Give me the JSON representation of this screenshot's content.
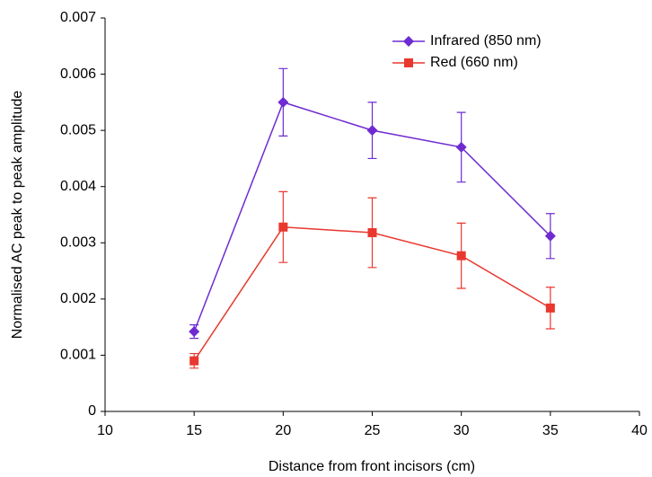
{
  "chart_data": {
    "type": "line",
    "x_label": "Distance from front incisors (cm)",
    "y_label": "Normalised AC peak to peak amplitude",
    "x": [
      15,
      20,
      25,
      30,
      35
    ],
    "series": [
      {
        "name": "Infrared (850 nm)",
        "color": "#6f2bd1",
        "marker": "diamond",
        "values": [
          0.00142,
          0.0055,
          0.005,
          0.0047,
          0.00312
        ],
        "errors": [
          0.00012,
          0.0006,
          0.0005,
          0.00062,
          0.0004
        ]
      },
      {
        "name": "Red (660 nm)",
        "color": "#e8382f",
        "marker": "square",
        "values": [
          0.0009,
          0.00328,
          0.00318,
          0.00277,
          0.00184
        ],
        "errors": [
          0.00013,
          0.00063,
          0.00062,
          0.00058,
          0.00037
        ]
      }
    ],
    "xlim": [
      10,
      40
    ],
    "xticks": [
      10,
      15,
      20,
      25,
      30,
      35,
      40
    ],
    "ylim": [
      0,
      0.007
    ],
    "yticks": [
      0,
      0.001,
      0.002,
      0.003,
      0.004,
      0.005,
      0.006,
      0.007
    ],
    "legend": "upper right"
  }
}
